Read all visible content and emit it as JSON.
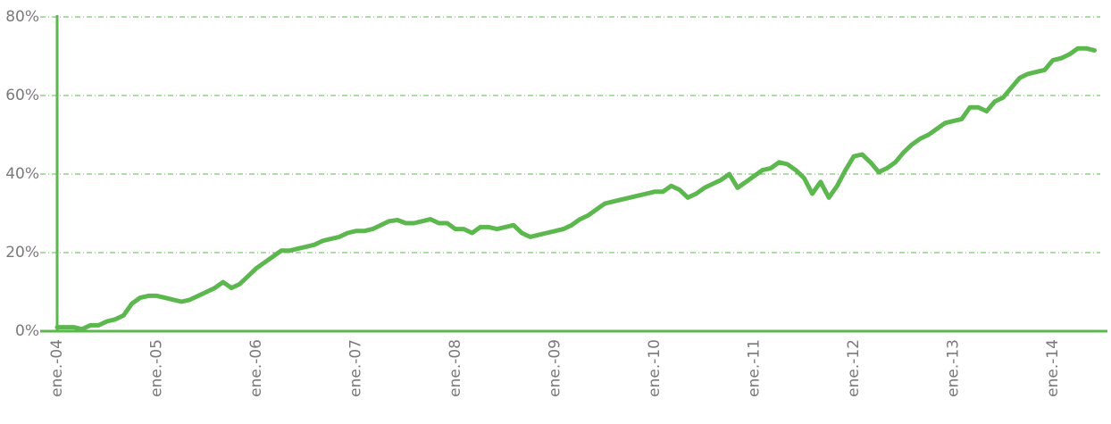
{
  "chart_data": {
    "type": "line",
    "categories": [
      "ene.-04",
      null,
      null,
      null,
      null,
      null,
      null,
      null,
      null,
      null,
      null,
      null,
      "ene.-05",
      null,
      null,
      null,
      null,
      null,
      null,
      null,
      null,
      null,
      null,
      null,
      "ene.-06",
      null,
      null,
      null,
      null,
      null,
      null,
      null,
      null,
      null,
      null,
      null,
      "ene.-07",
      null,
      null,
      null,
      null,
      null,
      null,
      null,
      null,
      null,
      null,
      null,
      "ene.-08",
      null,
      null,
      null,
      null,
      null,
      null,
      null,
      null,
      null,
      null,
      null,
      "ene.-09",
      null,
      null,
      null,
      null,
      null,
      null,
      null,
      null,
      null,
      null,
      null,
      "ene.-10",
      null,
      null,
      null,
      null,
      null,
      null,
      null,
      null,
      null,
      null,
      null,
      "ene.-11",
      null,
      null,
      null,
      null,
      null,
      null,
      null,
      null,
      null,
      null,
      null,
      "ene.-12",
      null,
      null,
      null,
      null,
      null,
      null,
      null,
      null,
      null,
      null,
      null,
      "ene.-13",
      null,
      null,
      null,
      null,
      null,
      null,
      null,
      null,
      null,
      null,
      null,
      "ene.-14",
      null,
      null,
      null,
      null,
      null
    ],
    "values": [
      1,
      1,
      1,
      0.5,
      1.5,
      1.5,
      2.5,
      3,
      4,
      7,
      8.5,
      9,
      9,
      8.5,
      8,
      7.5,
      8,
      9,
      10,
      11,
      12.5,
      11,
      12,
      14,
      16,
      17.5,
      19,
      20.5,
      20.5,
      21,
      21.5,
      22,
      23,
      23.5,
      24,
      25,
      25.5,
      25.5,
      26,
      27,
      28,
      28.3,
      27.5,
      27.5,
      28,
      28.5,
      27.5,
      27.5,
      26,
      26,
      25,
      26.5,
      26.5,
      26,
      26.5,
      27,
      25,
      24,
      24.5,
      25,
      25.5,
      26,
      27,
      28.5,
      29.5,
      31,
      32.5,
      33,
      33.5,
      34,
      34.5,
      35,
      35.5,
      35.5,
      37,
      36,
      34,
      35,
      36.5,
      37.5,
      38.5,
      40,
      36.5,
      38,
      39.5,
      41,
      41.5,
      43,
      42.5,
      41,
      39,
      35,
      38,
      34,
      37,
      41,
      44.5,
      45,
      43,
      40.5,
      41.5,
      43,
      45.5,
      47.5,
      49,
      50,
      51.5,
      53,
      53.5,
      54,
      57,
      57,
      56,
      58.5,
      59.5,
      62,
      64.5,
      65.5,
      66,
      66.5,
      69,
      69.5,
      70.5,
      72,
      72,
      71.5
    ],
    "color": "#5cb84e",
    "ylim": [
      0,
      80
    ],
    "yticks": [
      {
        "value": 0,
        "label": "0%"
      },
      {
        "value": 20,
        "label": "20%"
      },
      {
        "value": 40,
        "label": "40%"
      },
      {
        "value": 60,
        "label": "60%"
      },
      {
        "value": 80,
        "label": "80%"
      }
    ],
    "grid": true
  }
}
